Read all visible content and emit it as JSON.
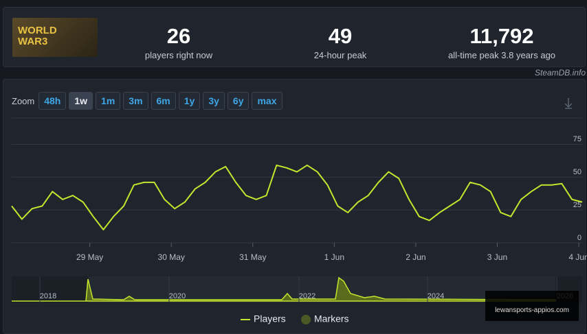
{
  "header": {
    "logo_line1": "WORLD",
    "logo_line2": "WAR3",
    "stats": [
      {
        "value": "26",
        "label": "players right now"
      },
      {
        "value": "49",
        "label": "24-hour peak"
      },
      {
        "value": "11,792",
        "label": "all-time peak 3.8 years ago"
      }
    ],
    "credit": "SteamDB.info"
  },
  "zoom": {
    "label": "Zoom",
    "buttons": [
      "48h",
      "1w",
      "1m",
      "3m",
      "6m",
      "1y",
      "3y",
      "6y",
      "max"
    ]
  },
  "navigator": {
    "years": [
      "2018",
      "2020",
      "2022",
      "2024",
      "2026"
    ]
  },
  "watermark": "lewansports-appios.com",
  "chart_data": {
    "type": "line",
    "markers_label": "Markers",
    "x": [
      0,
      3,
      6,
      9,
      12,
      15,
      18,
      21,
      24,
      27,
      30,
      33,
      36,
      39,
      42,
      45,
      48,
      51,
      54,
      57,
      60,
      63,
      66,
      69,
      72,
      75,
      78,
      81,
      84,
      87,
      90,
      93,
      96,
      99,
      102,
      105,
      108,
      111,
      114,
      117,
      120,
      123,
      126,
      129,
      132,
      135,
      138,
      141,
      144,
      147,
      150,
      153,
      156,
      159,
      162,
      165,
      168
    ],
    "series": [
      {
        "name": "Players",
        "color": "#c6e62e",
        "values": [
          28,
          18,
          26,
          28,
          39,
          33,
          36,
          31,
          20,
          10,
          20,
          28,
          44,
          46,
          46,
          33,
          26,
          31,
          41,
          46,
          54,
          58,
          46,
          36,
          33,
          36,
          59,
          57,
          54,
          59,
          54,
          44,
          28,
          23,
          31,
          36,
          46,
          54,
          49,
          33,
          20,
          17,
          23,
          28,
          33,
          46,
          44,
          39,
          23,
          20,
          33,
          39,
          44,
          44,
          45,
          33,
          31
        ]
      }
    ],
    "xlim": [
      0,
      168
    ],
    "xticks": [
      {
        "value": 23,
        "label": "29 May"
      },
      {
        "value": 47,
        "label": "30 May"
      },
      {
        "value": 71,
        "label": "31 May"
      },
      {
        "value": 95,
        "label": "1 Jun"
      },
      {
        "value": 119,
        "label": "2 Jun"
      },
      {
        "value": 143,
        "label": "3 Jun"
      },
      {
        "value": 167,
        "label": "4 Jun"
      }
    ],
    "ylim": [
      0,
      95
    ],
    "yticks": [
      0,
      25,
      50,
      75
    ],
    "grid": true
  }
}
